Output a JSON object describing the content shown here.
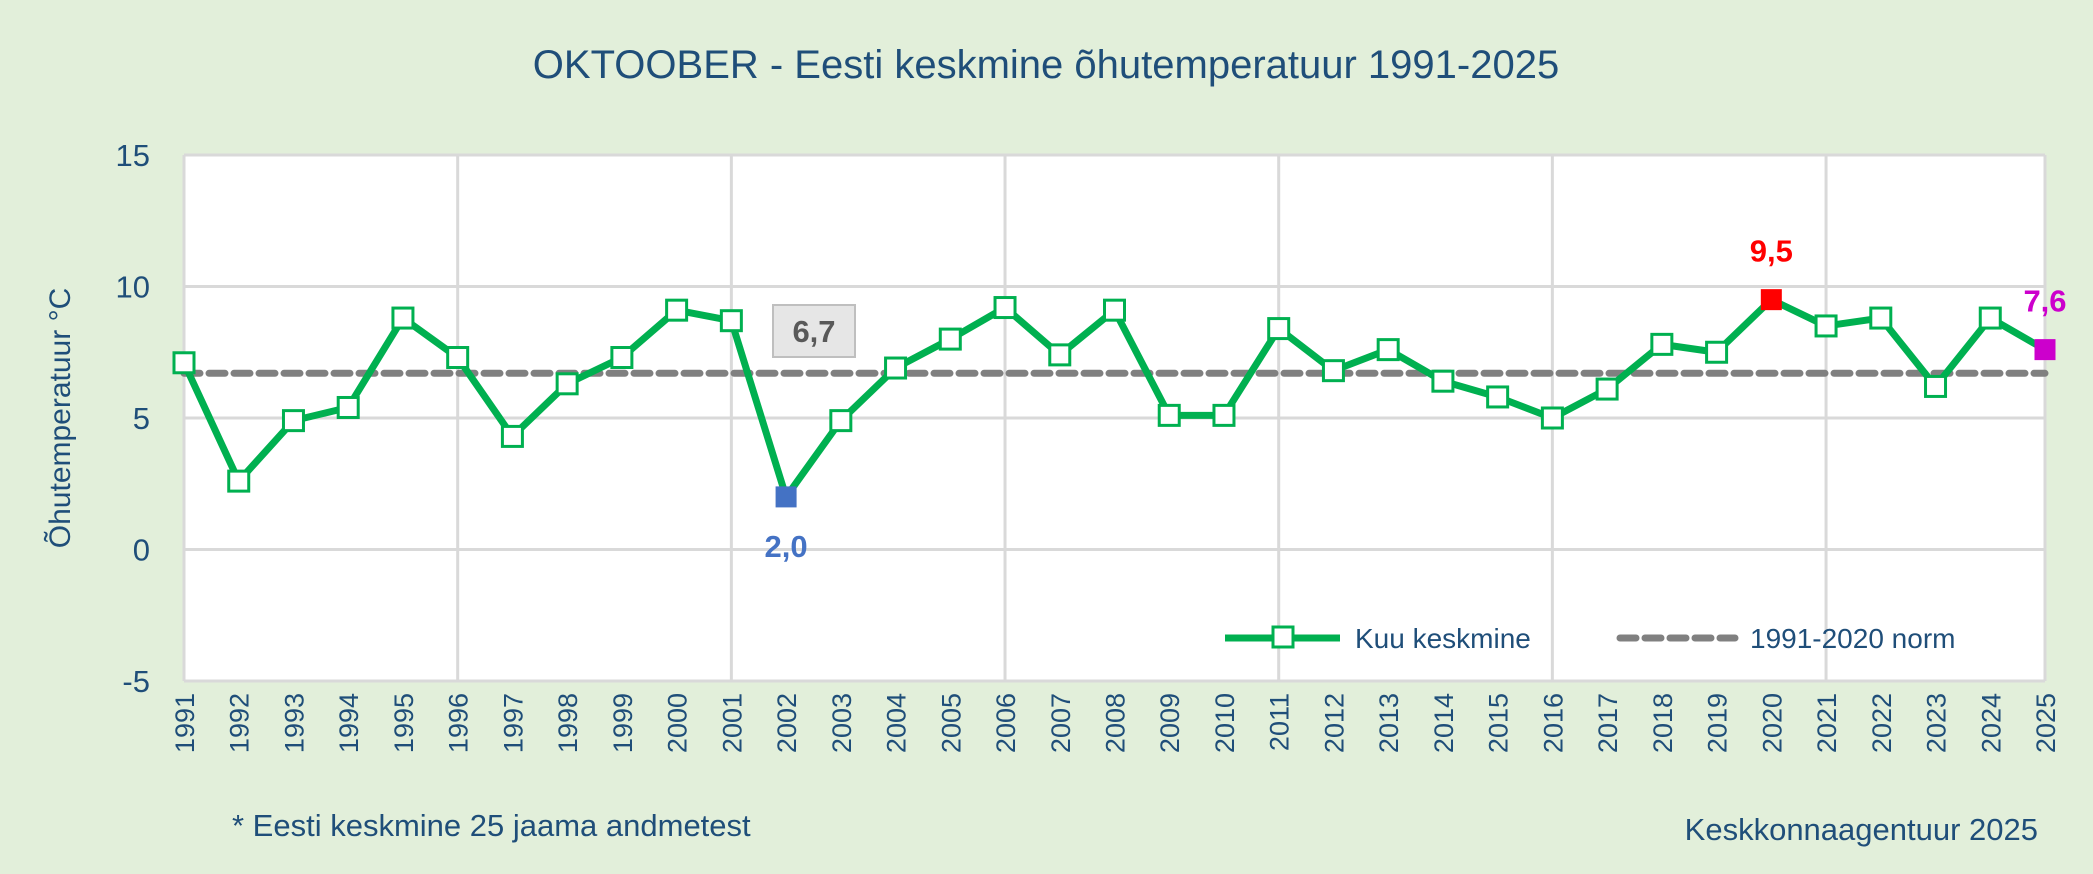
{
  "chart_data": {
    "type": "line",
    "title": "OKTOOBER - Eesti keskmine õhutemperatuur 1991-2025",
    "ylabel": "Õhutemperatuur °C",
    "xlabel": "",
    "ylim": [
      -5,
      15
    ],
    "yticks": [
      -5,
      0,
      5,
      10,
      15
    ],
    "grid": true,
    "legend_position": "bottom-right",
    "categories": [
      "1991",
      "1992",
      "1993",
      "1994",
      "1995",
      "1996",
      "1997",
      "1998",
      "1999",
      "2000",
      "2001",
      "2002",
      "2003",
      "2004",
      "2005",
      "2006",
      "2007",
      "2008",
      "2009",
      "2010",
      "2011",
      "2012",
      "2013",
      "2014",
      "2015",
      "2016",
      "2017",
      "2018",
      "2019",
      "2020",
      "2021",
      "2022",
      "2023",
      "2024",
      "2025"
    ],
    "series": [
      {
        "name": "Kuu keskmine",
        "color": "#00b050",
        "values": [
          7.1,
          2.6,
          4.9,
          5.4,
          8.8,
          7.3,
          4.3,
          6.3,
          7.3,
          9.1,
          8.7,
          2.0,
          4.9,
          6.9,
          8.0,
          9.2,
          7.4,
          9.1,
          5.1,
          5.1,
          8.4,
          6.8,
          7.6,
          6.4,
          5.8,
          5.0,
          6.1,
          7.8,
          7.5,
          9.5,
          8.5,
          8.8,
          6.2,
          8.8,
          7.6
        ]
      },
      {
        "name": "1991-2020 norm",
        "color": "#808080",
        "value": 6.7
      }
    ],
    "annotations": [
      {
        "category": "2002",
        "label": "2,0",
        "color": "#4472c4"
      },
      {
        "category": "2020",
        "label": "9,5",
        "color": "#ff0000"
      },
      {
        "category": "2025",
        "label": "7,6",
        "color": "#cc00cc"
      },
      {
        "label": "6,7",
        "note_color": "#595959"
      }
    ]
  },
  "footnote_left": "* Eesti keskmine 25 jaama andmetest",
  "footnote_right": "Keskkonnaagentuur 2025",
  "colors": {
    "background": "#e2efda",
    "text": "#1f4e79",
    "plot_bg": "#ffffff",
    "grid": "#d9d9d9"
  }
}
